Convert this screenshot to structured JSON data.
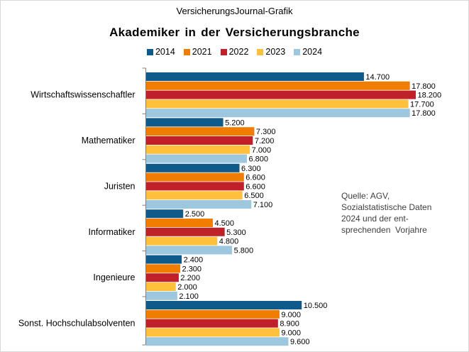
{
  "publisher": "VersicherungsJournal-Grafik",
  "chart_data": {
    "type": "bar",
    "orientation": "horizontal",
    "title": "Akademiker  in der Versicherungsbranche",
    "categories": [
      "Wirtschaftswissenschaftler",
      "Mathematiker",
      "Juristen",
      "Informatiker",
      "Ingenieure",
      "Sonst. Hochschulabsolventen"
    ],
    "series": [
      {
        "name": "2014",
        "color": "#0e5a8a",
        "values": [
          14700,
          5200,
          6300,
          2500,
          2400,
          10500
        ],
        "labels": [
          "14.700",
          "5.200",
          "6.300",
          "2.500",
          "2.400",
          "10.500"
        ]
      },
      {
        "name": "2021",
        "color": "#f07c00",
        "values": [
          17800,
          7300,
          6600,
          4500,
          2300,
          9000
        ],
        "labels": [
          "17.800",
          "7.300",
          "6.600",
          "4.500",
          "2.300",
          "9.000"
        ]
      },
      {
        "name": "2022",
        "color": "#c0202a",
        "values": [
          18200,
          7200,
          6600,
          5300,
          2200,
          8900
        ],
        "labels": [
          "18.200",
          "7.200",
          "6.600",
          "5.300",
          "2.200",
          "8.900"
        ]
      },
      {
        "name": "2023",
        "color": "#ffc13b",
        "values": [
          17700,
          7000,
          6500,
          4800,
          2000,
          9000
        ],
        "labels": [
          "17.700",
          "7.000",
          "6.500",
          "4.800",
          "2.000",
          "9.000"
        ]
      },
      {
        "name": "2024",
        "color": "#9cc7df",
        "values": [
          17800,
          6800,
          7100,
          5800,
          2100,
          9600
        ],
        "labels": [
          "17.800",
          "6.800",
          "7.100",
          "5.800",
          "2.100",
          "9.600"
        ]
      }
    ],
    "xlim": [
      0,
      20000
    ],
    "legend": "top-center"
  },
  "source_lines": [
    "Quelle: AGV,",
    "Sozialstatistische Daten",
    "2024 und der ent-",
    "sprechenden  Vorjahre"
  ]
}
